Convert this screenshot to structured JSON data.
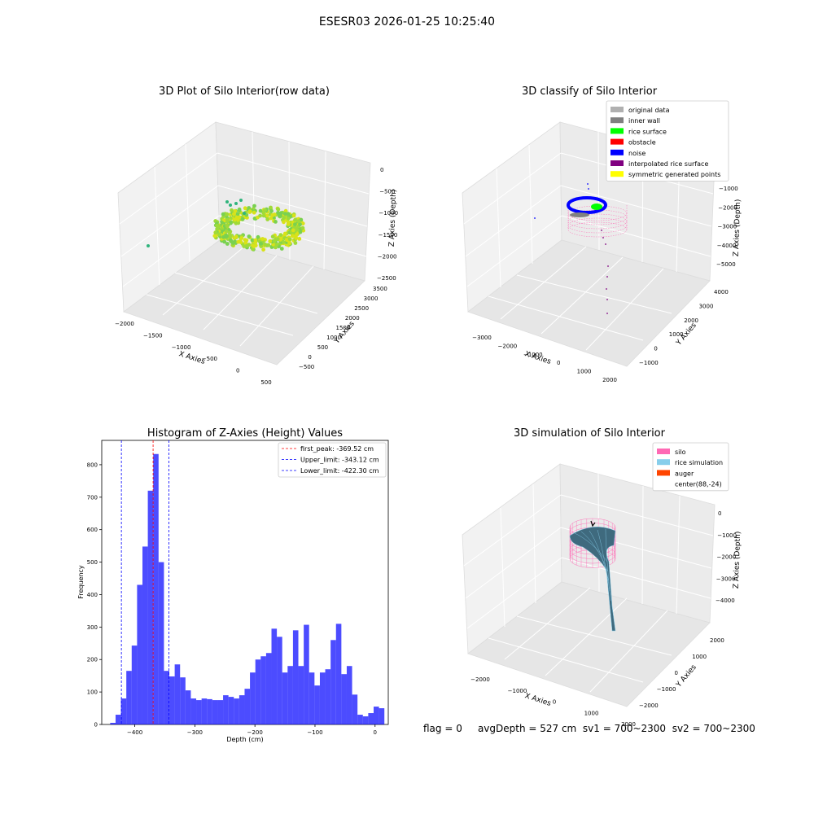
{
  "figure": {
    "suptitle": "ESESR03 2026-01-25 10:25:40",
    "status": {
      "flag": "flag = 0",
      "avgDepth": "avgDepth = 527 cm",
      "sv1": "sv1 = 700~2300",
      "sv2": "sv2 = 700~2300"
    }
  },
  "chart_data": [
    {
      "type": "scatter",
      "projection": "3d",
      "title": "3D Plot of Silo Interior(row data)",
      "xlabel": "X Axies",
      "ylabel": "Y Axies",
      "zlabel": "Z Axies (Depth)",
      "x_ticks": [
        "−2000",
        "−1500",
        "−1000",
        "−500",
        "0",
        "500"
      ],
      "y_ticks": [
        "−500",
        "0",
        "500",
        "1000",
        "1500",
        "2000",
        "2500",
        "3000",
        "3500"
      ],
      "z_ticks": [
        "0",
        "−500",
        "−1000",
        "−1500",
        "−2000",
        "−2500"
      ],
      "colors": [
        "#d8e219",
        "#a0da39",
        "#7ad151",
        "#56c667",
        "#2fb47c"
      ]
    },
    {
      "type": "scatter",
      "projection": "3d",
      "title": "3D classify of Silo Interior",
      "xlabel": "X Axies",
      "ylabel": "Y Axies",
      "zlabel": "Z Axies (Depth)",
      "x_ticks": [
        "−3000",
        "−2000",
        "−1000",
        "0",
        "1000",
        "2000"
      ],
      "y_ticks": [
        "−1000",
        "0",
        "1000",
        "2000",
        "3000",
        "4000"
      ],
      "z_ticks": [
        "−1000",
        "−2000",
        "−3000",
        "−4000",
        "−5000"
      ],
      "legend_position": "upper-right",
      "legend": [
        {
          "name": "original data",
          "color": "#b0b0b0"
        },
        {
          "name": "inner wall",
          "color": "#808080"
        },
        {
          "name": "rice surface",
          "color": "#00ff00"
        },
        {
          "name": "obstacle",
          "color": "#ff0000"
        },
        {
          "name": "noise",
          "color": "#0000ff"
        },
        {
          "name": "interpolated rice surface",
          "color": "#800080"
        },
        {
          "name": "symmetric generated points",
          "color": "#ffff00"
        }
      ]
    },
    {
      "type": "bar",
      "title": "Histogram of Z-Axies (Height) Values",
      "xlabel": "Depth (cm)",
      "ylabel": "Frequency",
      "xlim": [
        -455,
        22
      ],
      "ylim": [
        0,
        875
      ],
      "x_ticks": [
        -400,
        -300,
        -200,
        -100,
        0
      ],
      "x_tick_labels": [
        "−400",
        "−300",
        "−200",
        "−100",
        "0"
      ],
      "y_ticks": [
        0,
        100,
        200,
        300,
        400,
        500,
        600,
        700,
        800
      ],
      "bin_width": 8.95,
      "bin_start": -440.95,
      "bar_color": "#0000ff",
      "values": [
        5,
        30,
        80,
        165,
        243,
        430,
        548,
        720,
        833,
        500,
        165,
        148,
        185,
        145,
        105,
        80,
        75,
        80,
        78,
        75,
        75,
        90,
        85,
        80,
        90,
        110,
        160,
        200,
        210,
        220,
        295,
        270,
        160,
        180,
        290,
        180,
        307,
        160,
        120,
        160,
        170,
        260,
        310,
        155,
        180,
        92,
        30,
        25,
        35,
        55,
        50
      ],
      "legend_position": "upper-right",
      "lines": [
        {
          "name": "first_peak: -369.52 cm",
          "x": -369.52,
          "color": "#ff0000"
        },
        {
          "name": "Upper_limit: -343.12 cm",
          "x": -343.12,
          "color": "#0000ff"
        },
        {
          "name": "Lower_limit: -422.30 cm",
          "x": -422.3,
          "color": "#0000ff"
        }
      ]
    },
    {
      "type": "area",
      "projection": "3d",
      "title": "3D simulation of Silo Interior",
      "xlabel": "X Axies",
      "ylabel": "Y Axies",
      "zlabel": "Z Axies (Depth)",
      "x_ticks": [
        "−2000",
        "−1000",
        "0",
        "1000",
        "2000"
      ],
      "y_ticks": [
        "−2000",
        "−1000",
        "0",
        "1000",
        "2000"
      ],
      "z_ticks": [
        "0",
        "−1000",
        "−2000",
        "−3000",
        "−4000"
      ],
      "legend_position": "upper-right",
      "legend": [
        {
          "name": "silo",
          "color": "#ff69b4"
        },
        {
          "name": "rice simulation",
          "color": "#87ceeb"
        },
        {
          "name": "auger",
          "color": "#ff4500"
        },
        {
          "name": "center(88,-24)",
          "color": ""
        }
      ]
    }
  ]
}
